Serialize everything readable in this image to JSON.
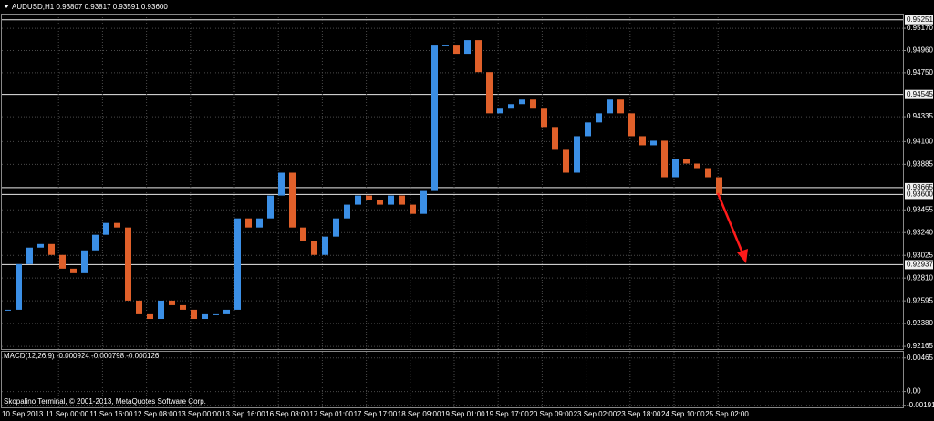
{
  "chart_data": [
    {
      "type": "candlestick",
      "title": "AUDUSD,H1  0.93807 0.93817 0.93591 0.93600",
      "x_labels": [
        "10 Sep 2013",
        "11 Sep 00:00",
        "11 Sep 16:00",
        "12 Sep 08:00",
        "13 Sep 00:00",
        "13 Sep 16:00",
        "16 Sep 08:00",
        "17 Sep 01:00",
        "17 Sep 17:00",
        "18 Sep 09:00",
        "19 Sep 01:00",
        "19 Sep 17:00",
        "20 Sep 09:00",
        "23 Sep 02:00",
        "23 Sep 18:00",
        "24 Sep 10:00",
        "25 Sep 02:00"
      ],
      "values": [
        0.92511,
        0.92942,
        0.93098,
        0.93132,
        0.93029,
        0.92899,
        0.92856,
        0.93072,
        0.93219,
        0.93331,
        0.93288,
        0.92597,
        0.92468,
        0.92424,
        0.92597,
        0.92554,
        0.92511,
        0.92424,
        0.92468,
        0.92468,
        0.92511,
        0.93374,
        0.93288,
        0.93374,
        0.9359,
        0.93806,
        0.93288,
        0.93158,
        0.93029,
        0.93202,
        0.93374,
        0.93504,
        0.9359,
        0.93547,
        0.93504,
        0.9359,
        0.93504,
        0.93417,
        0.93633,
        0.95015,
        0.95015,
        0.94929,
        0.95058,
        0.94756,
        0.94367,
        0.94411,
        0.94454,
        0.94497,
        0.94411,
        0.94238,
        0.94022,
        0.93806,
        0.94151,
        0.94281,
        0.94367,
        0.94497,
        0.94367,
        0.94151,
        0.94065,
        0.94108,
        0.93763,
        0.93936,
        0.93892,
        0.93849,
        0.93763,
        0.936
      ],
      "up_color": "#3b8fe6",
      "down_color": "#e0602a",
      "ylim": [
        0.9214,
        0.953
      ],
      "yticks": [
        0.95251,
        {
          "value": 0.9517,
          "label": "0.95170"
        },
        {
          "value": 0.9496,
          "label": "0.94960"
        },
        {
          "value": 0.9475,
          "label": "0.94750"
        },
        0.94545,
        0.94335,
        {
          "value": 0.941,
          "label": "0.94100"
        },
        0.93885,
        0.93665,
        {
          "value": 0.936,
          "label": "0.93600"
        },
        0.93455,
        {
          "value": 0.9324,
          "label": "0.93240"
        },
        0.93025,
        0.92937,
        {
          "value": 0.9281,
          "label": "0.92810"
        },
        0.92595,
        {
          "value": 0.9238,
          "label": "0.92380"
        },
        0.92165
      ],
      "levels": [
        0.95251,
        0.94545,
        0.93665,
        0.936,
        0.92937
      ],
      "grid": true
    },
    {
      "type": "macd",
      "title": "MACD(12,26,9) -0.000924 -0.000798 -0.000126",
      "ylim": [
        -0.0022,
        0.0055
      ],
      "yticks": [
        0.00465,
        {
          "value": 0,
          "label": "0.00"
        },
        -0.00191
      ],
      "grid": true
    }
  ],
  "watermark": "Skopalino Terminal, © 2001-2013, MetaQuotes Software Corp."
}
